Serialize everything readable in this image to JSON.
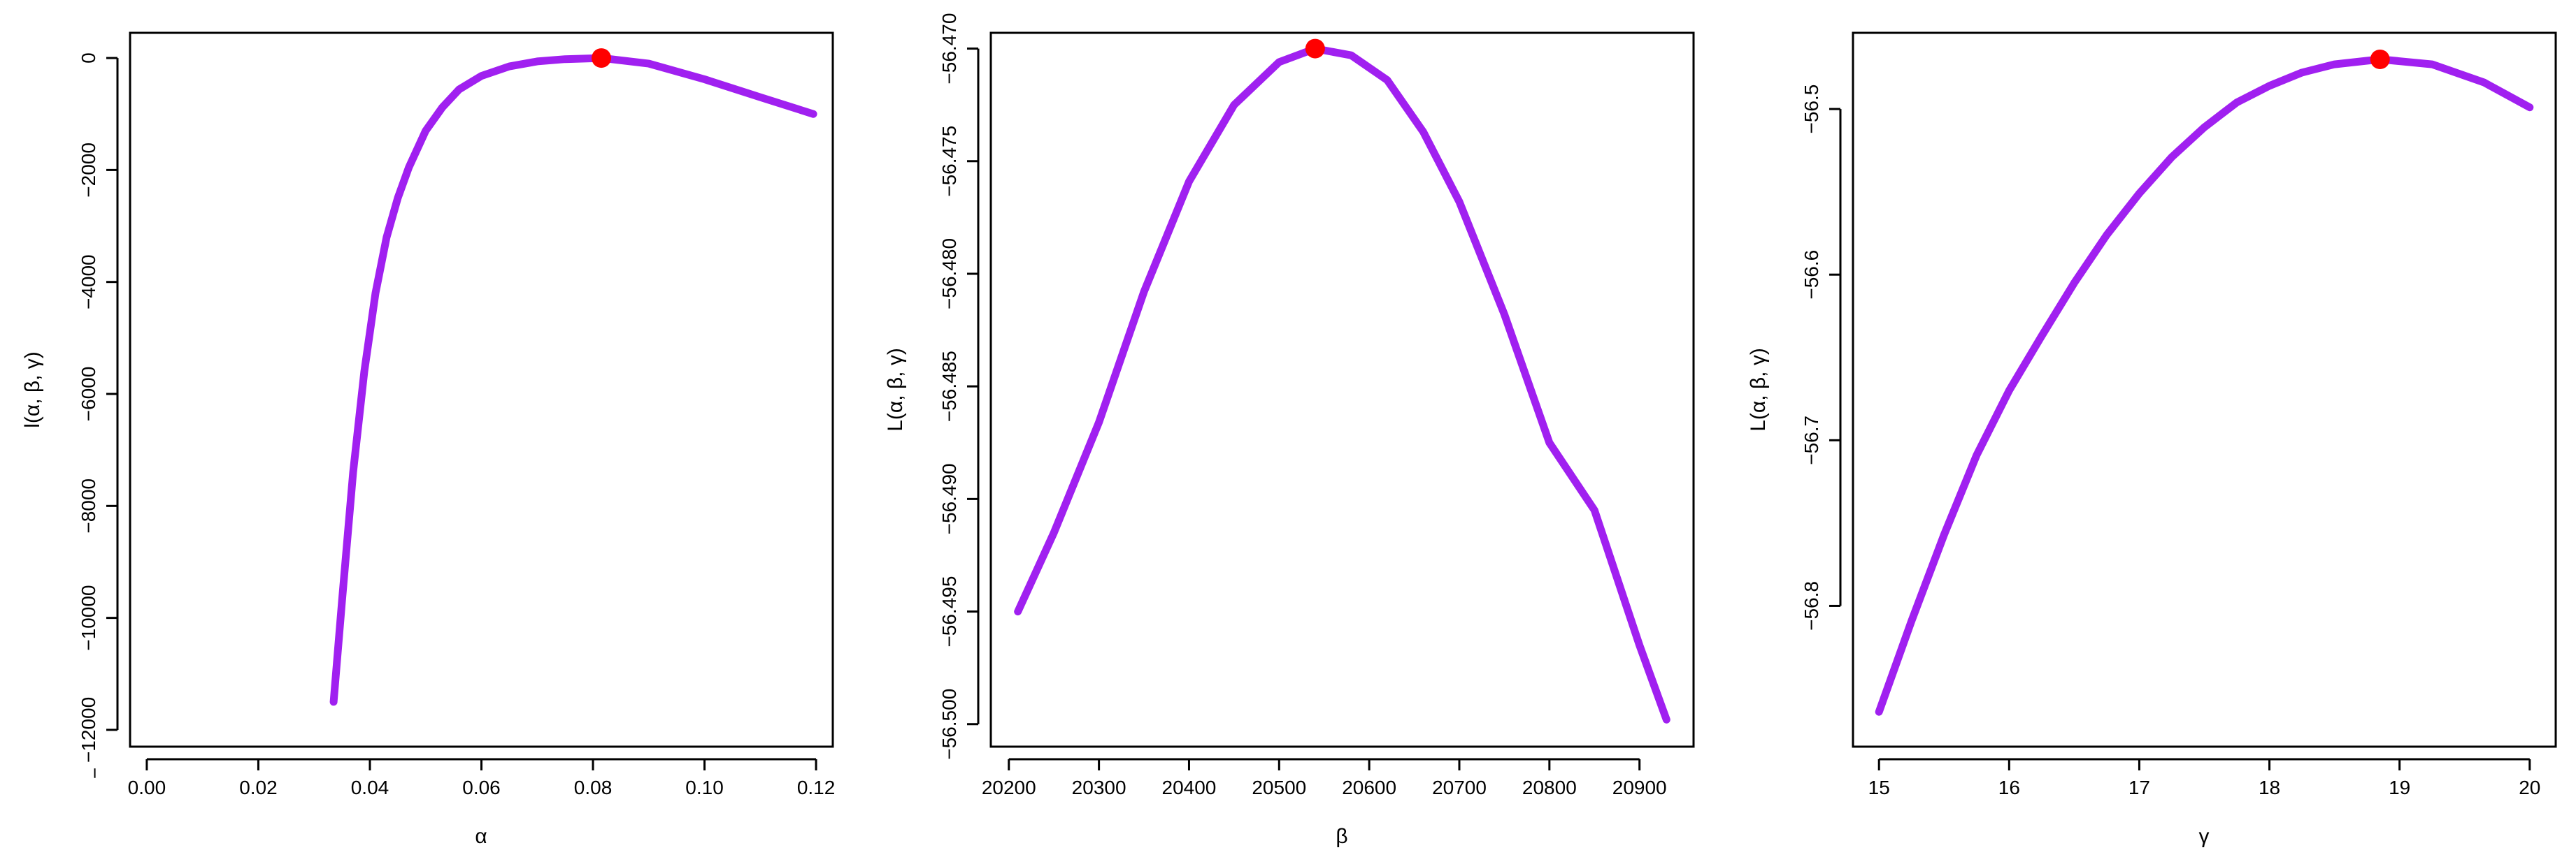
{
  "chart_data": [
    {
      "type": "line",
      "ylabel": "l(α, β, γ)",
      "xlabel": "α",
      "xlim": [
        -0.003,
        0.123
      ],
      "ylim": [
        -12300,
        450
      ],
      "x_ticks": [
        0.0,
        0.02,
        0.04,
        0.06,
        0.08,
        0.1,
        0.12
      ],
      "x_tick_labels": [
        "0.00",
        "0.02",
        "0.04",
        "0.06",
        "0.08",
        "0.10",
        "0.12"
      ],
      "y_ticks": [
        0,
        -2000,
        -4000,
        -6000,
        -8000,
        -10000,
        -12000
      ],
      "y_tick_labels": [
        "0",
        "−2000",
        "−4000",
        "−6000",
        "−8000",
        "−10000",
        "−12000"
      ],
      "y_tick_label_extra": "−",
      "series": [
        {
          "x": [
            0.0335,
            0.035,
            0.037,
            0.039,
            0.041,
            0.043,
            0.045,
            0.047,
            0.05,
            0.053,
            0.056,
            0.06,
            0.065,
            0.07,
            0.075,
            0.0815,
            0.09,
            0.1,
            0.11,
            0.1195
          ],
          "y": [
            -11500,
            -9700,
            -7400,
            -5600,
            -4200,
            -3200,
            -2500,
            -1950,
            -1300,
            -880,
            -560,
            -320,
            -150,
            -60,
            -20,
            0,
            -100,
            -380,
            -700,
            -1000
          ]
        }
      ],
      "max_point": {
        "x": 0.0815,
        "y": 0
      }
    },
    {
      "type": "line",
      "ylabel": "L(α, β, γ)",
      "xlabel": "β",
      "xlim": [
        20180,
        20960
      ],
      "ylim": [
        -56.501,
        -56.4693
      ],
      "x_ticks": [
        20200,
        20300,
        20400,
        20500,
        20600,
        20700,
        20800,
        20900
      ],
      "x_tick_labels": [
        "20200",
        "20300",
        "20400",
        "20500",
        "20600",
        "20700",
        "20800",
        "20900"
      ],
      "y_ticks": [
        -56.47,
        -56.475,
        -56.48,
        -56.485,
        -56.49,
        -56.495,
        -56.5
      ],
      "y_tick_labels": [
        "−56.470",
        "−56.475",
        "−56.480",
        "−56.485",
        "−56.490",
        "−56.495",
        "−56.500"
      ],
      "series": [
        {
          "x": [
            20210,
            20250,
            20300,
            20350,
            20400,
            20450,
            20500,
            20540,
            20580,
            20620,
            20660,
            20700,
            20750,
            20800,
            20850,
            20900,
            20930
          ],
          "y": [
            -56.495,
            -56.4915,
            -56.4866,
            -56.4808,
            -56.4759,
            -56.4725,
            -56.4706,
            -56.47,
            -56.4703,
            -56.4714,
            -56.4737,
            -56.4768,
            -56.4818,
            -56.4875,
            -56.4905,
            -56.4965,
            -56.4998
          ]
        }
      ],
      "max_point": {
        "x": 20540,
        "y": -56.47
      }
    },
    {
      "type": "line",
      "ylabel": "L(α, β, γ)",
      "xlabel": "γ",
      "xlim": [
        14.8,
        20.2
      ],
      "ylim": [
        -56.885,
        -56.454
      ],
      "x_ticks": [
        15,
        16,
        17,
        18,
        19,
        20
      ],
      "x_tick_labels": [
        "15",
        "16",
        "17",
        "18",
        "19",
        "20"
      ],
      "y_ticks": [
        -56.5,
        -56.6,
        -56.7,
        -56.8
      ],
      "y_tick_labels": [
        "−56.5",
        "−56.6",
        "−56.7",
        "−56.8"
      ],
      "series": [
        {
          "x": [
            15.0,
            15.25,
            15.5,
            15.75,
            16.0,
            16.25,
            16.5,
            16.75,
            17.0,
            17.25,
            17.5,
            17.75,
            18.0,
            18.25,
            18.5,
            18.85,
            19.25,
            19.65,
            20.0
          ],
          "y": [
            -56.864,
            -56.809,
            -56.757,
            -56.709,
            -56.67,
            -56.637,
            -56.605,
            -56.576,
            -56.551,
            -56.529,
            -56.511,
            -56.496,
            -56.486,
            -56.478,
            -56.473,
            -56.47,
            -56.473,
            -56.484,
            -56.499
          ]
        }
      ],
      "max_point": {
        "x": 18.85,
        "y": -56.47
      }
    }
  ],
  "colors": {
    "line": "#a020f0",
    "max_point": "#ff0000",
    "axis": "#000000"
  }
}
